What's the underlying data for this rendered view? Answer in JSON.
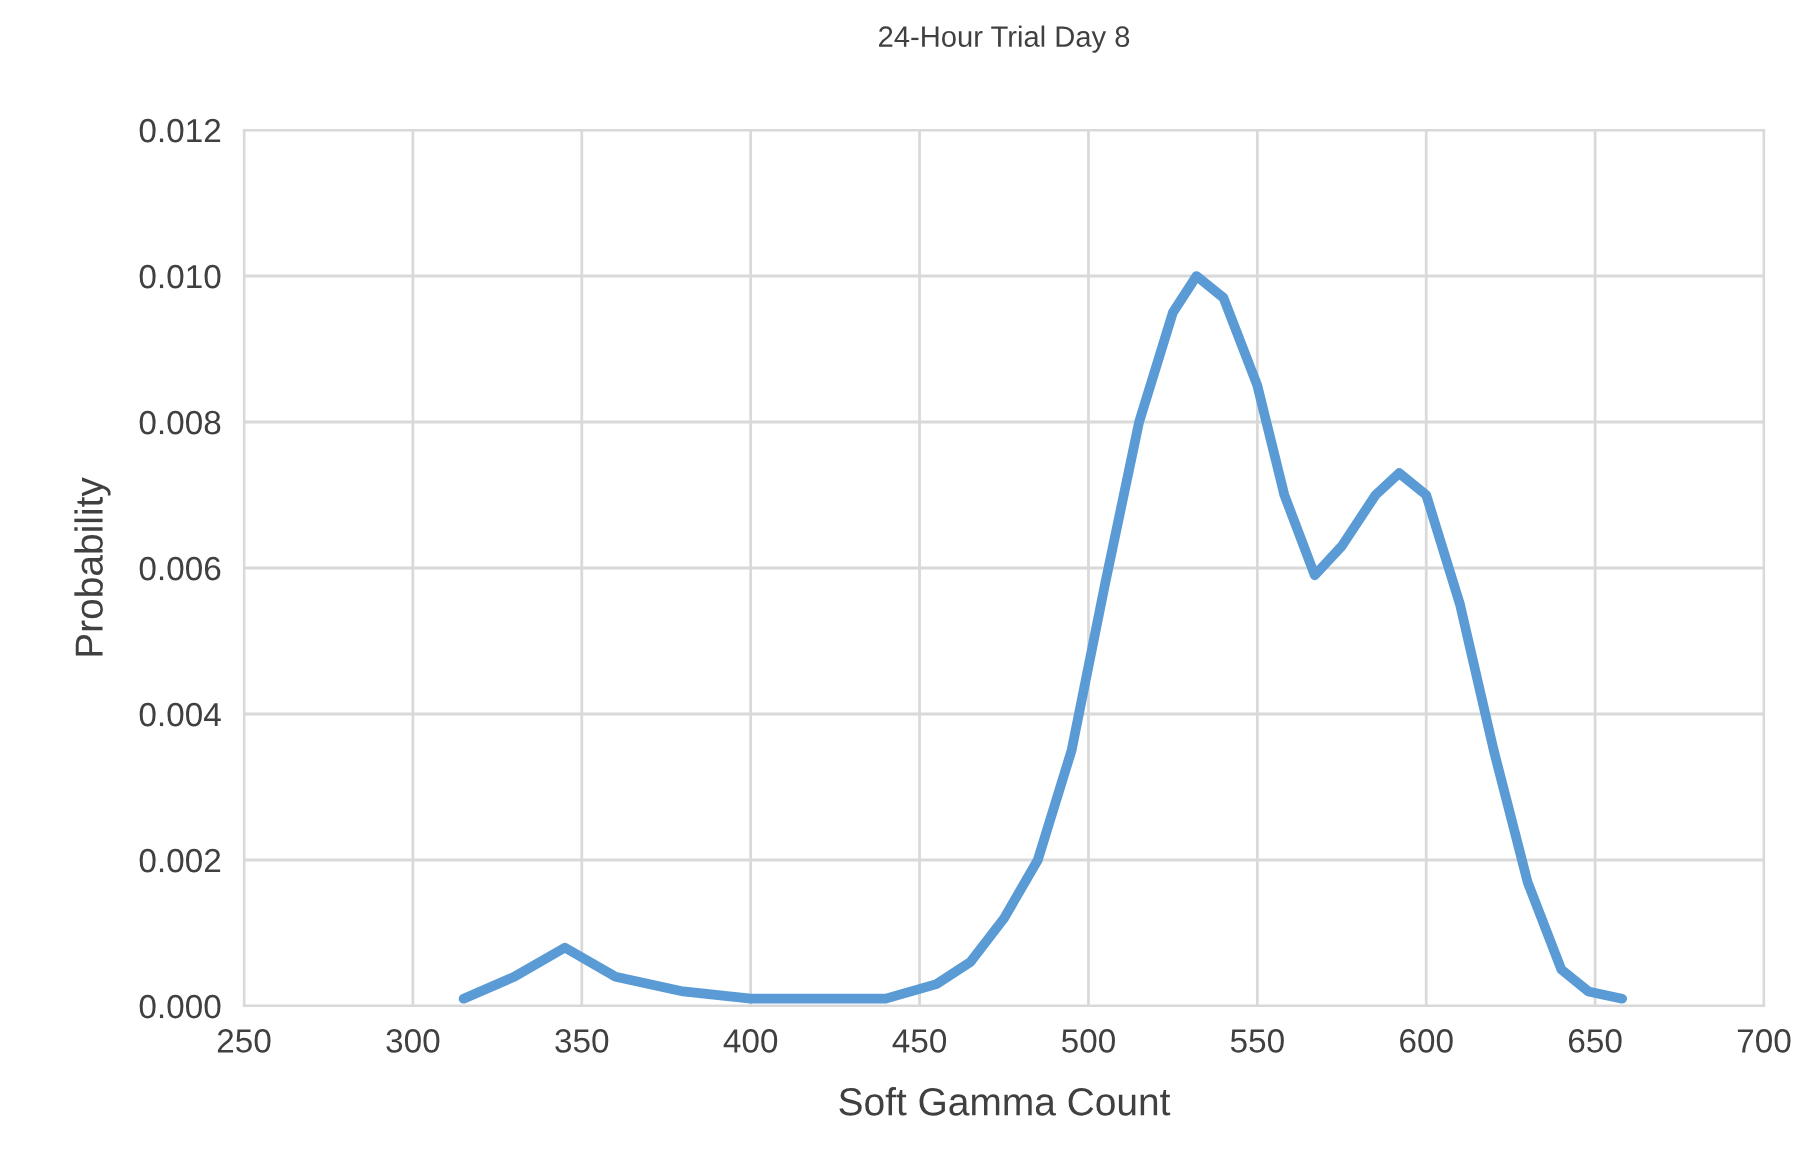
{
  "chart_data": {
    "type": "line",
    "title": "24-Hour Trial Day 8",
    "xlabel": "Soft Gamma Count",
    "ylabel": "Probability",
    "xlim": [
      250,
      700
    ],
    "xticks": [
      250,
      300,
      350,
      400,
      450,
      500,
      550,
      600,
      650,
      700
    ],
    "ylim": [
      0,
      0.012
    ],
    "yticks": [
      {
        "value": 0,
        "label": "0.000"
      },
      {
        "value": 0.002,
        "label": "0.002"
      },
      {
        "value": 0.004,
        "label": "0.004"
      },
      {
        "value": 0.006,
        "label": "0.006"
      },
      {
        "value": 0.008,
        "label": "0.008"
      },
      {
        "value": 0.01,
        "label": "0.010"
      },
      {
        "value": 0.012,
        "label": "0.012"
      }
    ],
    "grid": true,
    "line_style": "solid",
    "marker": "none",
    "series": [
      {
        "color": "#5b9bd5",
        "x": [
          315,
          330,
          345,
          360,
          380,
          400,
          420,
          440,
          455,
          465,
          475,
          485,
          495,
          505,
          515,
          525,
          532,
          540,
          550,
          558,
          567,
          575,
          585,
          592,
          600,
          610,
          620,
          630,
          640,
          648,
          658
        ],
        "values": [
          0.0001,
          0.0004,
          0.0008,
          0.0004,
          0.0002,
          0.0001,
          0.0001,
          0.0001,
          0.0003,
          0.0006,
          0.0012,
          0.002,
          0.0035,
          0.0058,
          0.008,
          0.0095,
          0.01,
          0.0097,
          0.0085,
          0.007,
          0.0059,
          0.0063,
          0.007,
          0.0073,
          0.007,
          0.0055,
          0.0035,
          0.0017,
          0.0005,
          0.0002,
          0.0001
        ]
      }
    ]
  }
}
